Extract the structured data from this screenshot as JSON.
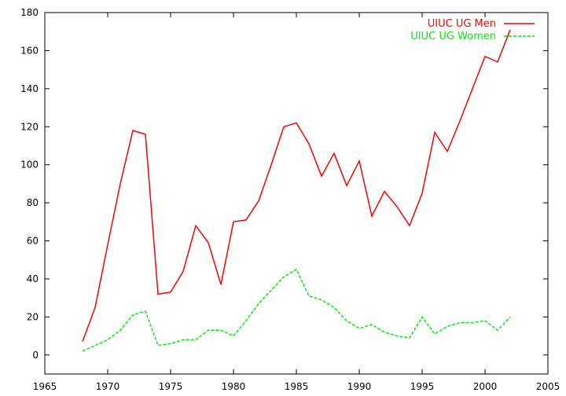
{
  "chart_data": {
    "type": "line",
    "title": "",
    "xlabel": "",
    "ylabel": "",
    "xlim": [
      1965,
      2005
    ],
    "ylim": [
      -10,
      180
    ],
    "xticks": [
      1965,
      1970,
      1975,
      1980,
      1985,
      1990,
      1995,
      2000,
      2005
    ],
    "yticks": [
      0,
      20,
      40,
      60,
      80,
      100,
      120,
      140,
      160,
      180
    ],
    "grid": false,
    "legend_position": "top-right",
    "series": [
      {
        "name": "UIUC UG Men",
        "color": "#ff0000",
        "dash": "solid",
        "x": [
          1968,
          1969,
          1970,
          1971,
          1972,
          1973,
          1974,
          1975,
          1976,
          1977,
          1978,
          1979,
          1980,
          1981,
          1982,
          1983,
          1984,
          1985,
          1986,
          1987,
          1988,
          1989,
          1990,
          1991,
          1992,
          1993,
          1994,
          1995,
          1996,
          1997,
          1998,
          1999,
          2000,
          2001,
          2002
        ],
        "y": [
          7,
          25,
          58,
          90,
          118,
          116,
          32,
          33,
          44,
          68,
          59,
          37,
          70,
          71,
          81,
          100,
          120,
          122,
          111,
          94,
          106,
          89,
          102,
          73,
          86,
          78,
          68,
          85,
          117,
          107,
          123,
          140,
          157,
          154,
          171
        ]
      },
      {
        "name": "UIUC UG Women",
        "color": "#00ee00",
        "dash": "dashed",
        "x": [
          1968,
          1969,
          1970,
          1971,
          1972,
          1973,
          1974,
          1975,
          1976,
          1977,
          1978,
          1979,
          1980,
          1981,
          1982,
          1983,
          1984,
          1985,
          1986,
          1987,
          1988,
          1989,
          1990,
          1991,
          1992,
          1993,
          1994,
          1995,
          1996,
          1997,
          1998,
          1999,
          2000,
          2001,
          2002
        ],
        "y": [
          2,
          5,
          8,
          13,
          21,
          23,
          5,
          6,
          8,
          8,
          13,
          13,
          10,
          18,
          27,
          34,
          41,
          45,
          31,
          29,
          25,
          18,
          14,
          16,
          12,
          10,
          9,
          20,
          11,
          15,
          17,
          17,
          18,
          13,
          20
        ]
      }
    ]
  }
}
